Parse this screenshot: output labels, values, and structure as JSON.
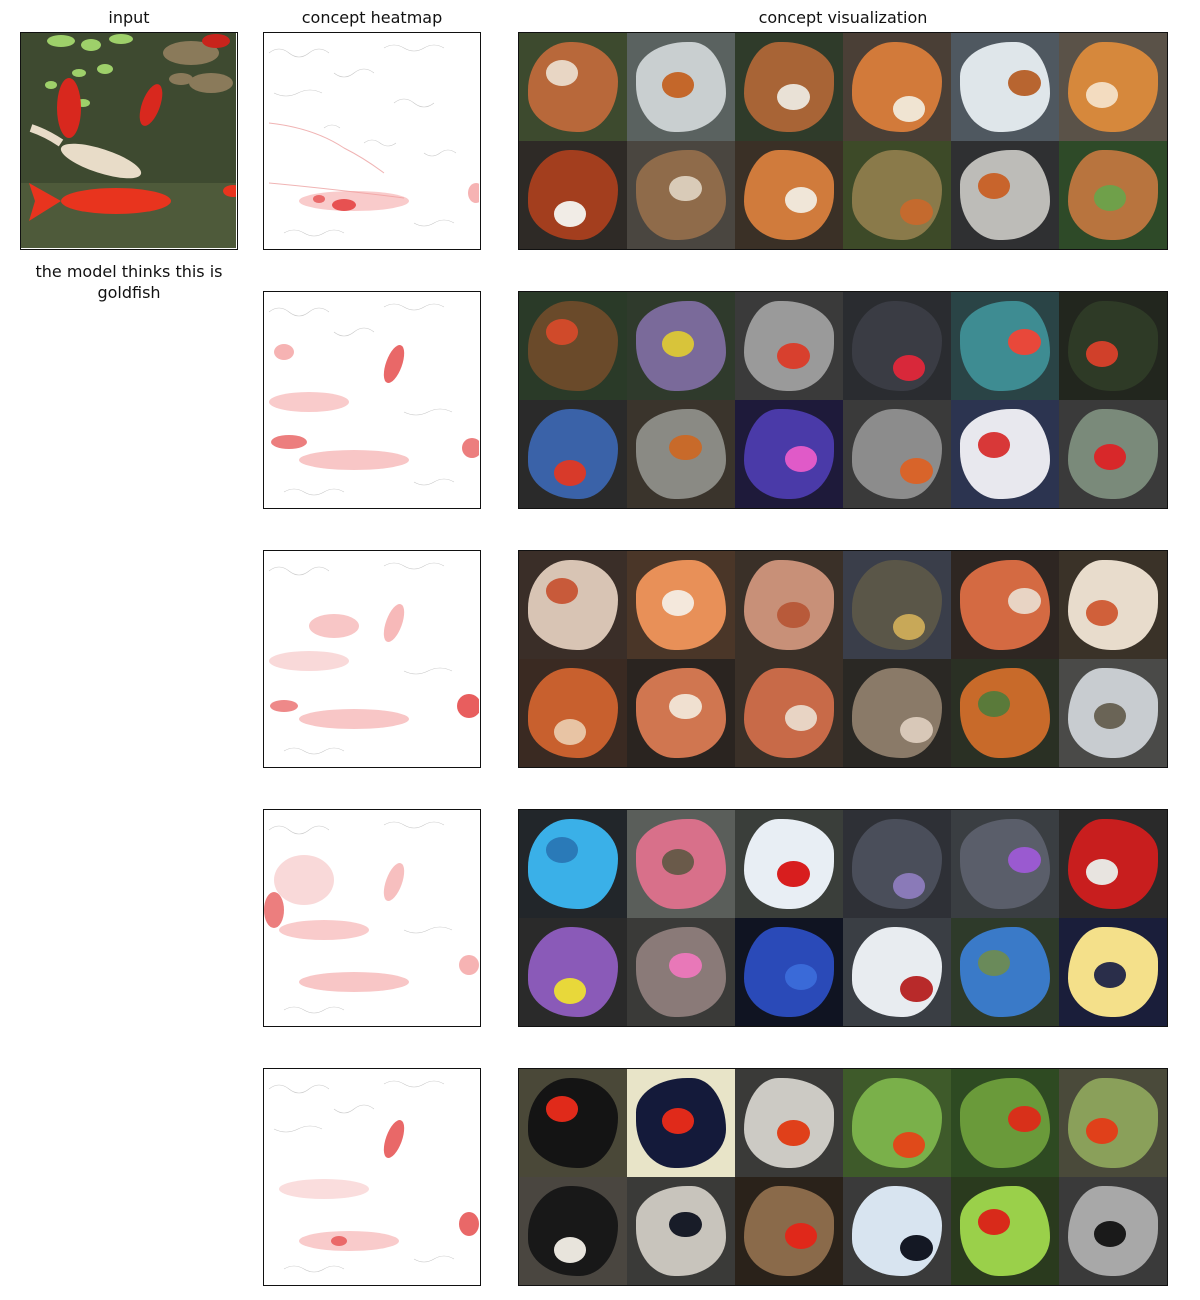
{
  "titles": {
    "input": "input",
    "heatmap": "concept heatmap",
    "visualization": "concept visualization"
  },
  "prediction_caption": "the model thinks this is goldfish",
  "concepts": [
    {
      "tiles": [
        {
          "bg": "#3d4a2e",
          "fg": "#b8683a",
          "spot": "#e8d6c4"
        },
        {
          "bg": "#5a6260",
          "fg": "#c9cfd0",
          "spot": "#c4672a"
        },
        {
          "bg": "#2f3b2a",
          "fg": "#a86436",
          "spot": "#e9e1d6"
        },
        {
          "bg": "#4a3f36",
          "fg": "#d27a3a",
          "spot": "#f0e4d2"
        },
        {
          "bg": "#4f5860",
          "fg": "#dfe6ea",
          "spot": "#b86530"
        },
        {
          "bg": "#5a5248",
          "fg": "#d6883c",
          "spot": "#f3dcc0"
        },
        {
          "bg": "#2e2a26",
          "fg": "#a33e1e",
          "spot": "#f1ece6"
        },
        {
          "bg": "#4a4640",
          "fg": "#8f6b4a",
          "spot": "#d9cbb8"
        },
        {
          "bg": "#3a3026",
          "fg": "#d07b3c",
          "spot": "#f0e6d8"
        },
        {
          "bg": "#3d4a28",
          "fg": "#8a7a4a",
          "spot": "#c46a2e"
        },
        {
          "bg": "#2f3032",
          "fg": "#bdbcb8",
          "spot": "#c8642c"
        },
        {
          "bg": "#2e4a28",
          "fg": "#b8743e",
          "spot": "#6fa04a"
        }
      ]
    },
    {
      "tiles": [
        {
          "bg": "#2a3a28",
          "fg": "#6a4a2a",
          "spot": "#d04a2a"
        },
        {
          "bg": "#2f3a2c",
          "fg": "#7a6a9a",
          "spot": "#d8c43a"
        },
        {
          "bg": "#3a3a3a",
          "fg": "#9a9a9a",
          "spot": "#d8402e"
        },
        {
          "bg": "#2a2c30",
          "fg": "#3a3c44",
          "spot": "#d8283a"
        },
        {
          "bg": "#2a4446",
          "fg": "#3e8c92",
          "spot": "#e8483a"
        },
        {
          "bg": "#22261e",
          "fg": "#2e3a26",
          "spot": "#d0402a"
        },
        {
          "bg": "#2a2a2a",
          "fg": "#3a62a8",
          "spot": "#d83a2a"
        },
        {
          "bg": "#3a342c",
          "fg": "#8a8a84",
          "spot": "#c86a2a"
        },
        {
          "bg": "#1e1a3a",
          "fg": "#4a3aa8",
          "spot": "#e05ac8"
        },
        {
          "bg": "#3a3a3a",
          "fg": "#8c8c8c",
          "spot": "#d8642a"
        },
        {
          "bg": "#2c3450",
          "fg": "#e8e8ee",
          "spot": "#d83838"
        },
        {
          "bg": "#3a3a3a",
          "fg": "#7a8a7a",
          "spot": "#d8282a"
        }
      ]
    },
    {
      "tiles": [
        {
          "bg": "#3a2e28",
          "fg": "#d8c4b4",
          "spot": "#c85a3a"
        },
        {
          "bg": "#4a3628",
          "fg": "#e89058",
          "spot": "#f4e8dc"
        },
        {
          "bg": "#3a3028",
          "fg": "#c89078",
          "spot": "#b85a3a"
        },
        {
          "bg": "#3a3e4a",
          "fg": "#5a5648",
          "spot": "#c8a858"
        },
        {
          "bg": "#2e2622",
          "fg": "#d46a42",
          "spot": "#e8d4c4"
        },
        {
          "bg": "#3a3228",
          "fg": "#e8dccc",
          "spot": "#d0603a"
        },
        {
          "bg": "#3a2a22",
          "fg": "#c8602e",
          "spot": "#e8c4a4"
        },
        {
          "bg": "#2a2420",
          "fg": "#d07650",
          "spot": "#f0e0d0"
        },
        {
          "bg": "#3a3028",
          "fg": "#c86a48",
          "spot": "#e8d4c4"
        },
        {
          "bg": "#2a2824",
          "fg": "#8a7a68",
          "spot": "#d8c8b8"
        },
        {
          "bg": "#2a3024",
          "fg": "#c86a2a",
          "spot": "#5a7a3a"
        },
        {
          "bg": "#4a4a48",
          "fg": "#c8ccd0",
          "spot": "#6a6456"
        }
      ]
    },
    {
      "tiles": [
        {
          "bg": "#22262a",
          "fg": "#3ab0e8",
          "spot": "#2a7ab8"
        },
        {
          "bg": "#5a5e5a",
          "fg": "#d8708a",
          "spot": "#6a5a4a"
        },
        {
          "bg": "#3a3e3a",
          "fg": "#e8eef4",
          "spot": "#d81e1e"
        },
        {
          "bg": "#2e3036",
          "fg": "#4a4e5a",
          "spot": "#8a7ab8"
        },
        {
          "bg": "#3a3e42",
          "fg": "#5a5e6a",
          "spot": "#9a5ad0"
        },
        {
          "bg": "#2a2a2a",
          "fg": "#c81e1e",
          "spot": "#e8e4e0"
        },
        {
          "bg": "#2a2a2a",
          "fg": "#8a5ab8",
          "spot": "#e8d83a"
        },
        {
          "bg": "#3a3a38",
          "fg": "#8a7a78",
          "spot": "#e878b8"
        },
        {
          "bg": "#101422",
          "fg": "#2a4ab8",
          "spot": "#3a6ad8"
        },
        {
          "bg": "#3a3e44",
          "fg": "#e8ecf0",
          "spot": "#b82a2a"
        },
        {
          "bg": "#2e3a2a",
          "fg": "#3a7ac8",
          "spot": "#6a8a5a"
        },
        {
          "bg": "#1a1e3a",
          "fg": "#f4e08a",
          "spot": "#2a2e4a"
        }
      ]
    },
    {
      "tiles": [
        {
          "bg": "#4a4838",
          "fg": "#141414",
          "spot": "#e02a1a"
        },
        {
          "bg": "#e8e4c8",
          "fg": "#141a3a",
          "spot": "#e02a1a"
        },
        {
          "bg": "#3a3a38",
          "fg": "#cccac4",
          "spot": "#e0401a"
        },
        {
          "bg": "#3e5a2a",
          "fg": "#7ab04a",
          "spot": "#e04a1a"
        },
        {
          "bg": "#2e4a22",
          "fg": "#6a9a3a",
          "spot": "#d8301a"
        },
        {
          "bg": "#4a4a3a",
          "fg": "#8aa05a",
          "spot": "#e0401a"
        },
        {
          "bg": "#4a4640",
          "fg": "#181818",
          "spot": "#e8e4dc"
        },
        {
          "bg": "#3a3a38",
          "fg": "#c8c4bc",
          "spot": "#181c28"
        },
        {
          "bg": "#2a221a",
          "fg": "#8a6a4a",
          "spot": "#e0281a"
        },
        {
          "bg": "#3a3a3a",
          "fg": "#d8e4f0",
          "spot": "#141824"
        },
        {
          "bg": "#2a3a1e",
          "fg": "#9ad04a",
          "spot": "#d82a1a"
        },
        {
          "bg": "#3a3a3a",
          "fg": "#a8a8a8",
          "spot": "#1a1a1a"
        }
      ]
    }
  ]
}
